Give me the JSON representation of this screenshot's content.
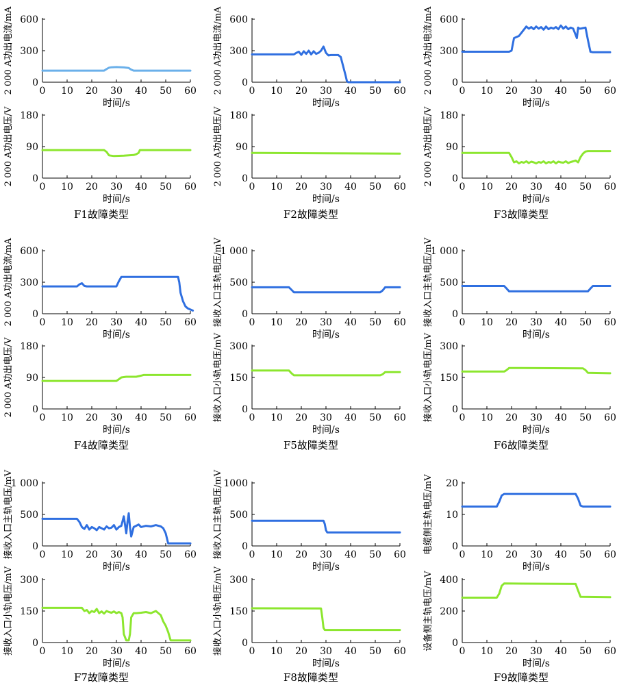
{
  "colors": {
    "current": "#2F6FE0",
    "current_light": "#6BB0EA",
    "voltage": "#8CE62E",
    "axis": "#000000"
  },
  "chart_data": [
    {
      "type": "line",
      "group": "F1",
      "ylabel": "2 000 A功出电流/mA",
      "xlabel": "时间/s",
      "yticks": [
        "0",
        "300",
        "600"
      ],
      "ylim": [
        0,
        600
      ],
      "xlim": [
        0,
        60
      ],
      "color": "current_light",
      "x": [
        0,
        25,
        26,
        27,
        28,
        30,
        33,
        35,
        36,
        37,
        60
      ],
      "y": [
        110,
        110,
        125,
        138,
        142,
        144,
        141,
        135,
        120,
        110,
        110
      ]
    },
    {
      "type": "line",
      "group": "F1",
      "ylabel": "2 000 A功出电压/V",
      "xlabel": "时间/s",
      "yticks": [
        "0",
        "90",
        "180"
      ],
      "ylim": [
        0,
        180
      ],
      "xlim": [
        0,
        60
      ],
      "color": "voltage",
      "x": [
        0,
        25,
        26,
        27,
        29,
        33,
        37,
        38,
        39,
        39.5,
        60
      ],
      "y": [
        80,
        80,
        75,
        65,
        63,
        64,
        66,
        68,
        72,
        80,
        80
      ]
    },
    {
      "type": "line",
      "group": "F2",
      "ylabel": "2 000 A功出电流/mA",
      "xlabel": "时间/s",
      "yticks": [
        "0",
        "300",
        "600"
      ],
      "ylim": [
        0,
        600
      ],
      "xlim": [
        0,
        60
      ],
      "color": "current",
      "x": [
        0,
        17,
        18,
        19,
        20,
        21,
        22,
        23,
        24,
        25,
        26,
        27,
        28,
        29,
        30,
        31,
        32,
        35,
        36,
        37,
        38,
        38.5,
        39,
        40,
        60
      ],
      "y": [
        265,
        265,
        280,
        290,
        260,
        295,
        270,
        300,
        265,
        295,
        270,
        280,
        300,
        340,
        280,
        255,
        258,
        258,
        240,
        150,
        60,
        10,
        0,
        0,
        0
      ]
    },
    {
      "type": "line",
      "group": "F2",
      "ylabel": "2 000 A功出电压/V",
      "xlabel": "时间/s",
      "yticks": [
        "0",
        "90",
        "180"
      ],
      "ylim": [
        0,
        180
      ],
      "xlim": [
        0,
        60
      ],
      "color": "voltage",
      "x": [
        0,
        30,
        60
      ],
      "y": [
        72,
        71,
        70
      ]
    },
    {
      "type": "line",
      "group": "F3",
      "ylabel": "2 000 A功出电流/mA",
      "xlabel": "时间/s",
      "yticks": [
        "0",
        "300",
        "600"
      ],
      "ylim": [
        0,
        600
      ],
      "xlim": [
        0,
        60
      ],
      "color": "current",
      "x": [
        0,
        19,
        20,
        21,
        23,
        24,
        25,
        26,
        27,
        28,
        29,
        30,
        31,
        32,
        33,
        34,
        35,
        36,
        37,
        38,
        39,
        40,
        41,
        42,
        43,
        44,
        45,
        46,
        46.5,
        47,
        47.5,
        48,
        49,
        50,
        51,
        52,
        53,
        60
      ],
      "y": [
        290,
        290,
        300,
        420,
        440,
        470,
        500,
        530,
        510,
        525,
        505,
        530,
        510,
        525,
        500,
        530,
        505,
        520,
        510,
        525,
        505,
        540,
        510,
        530,
        505,
        520,
        510,
        450,
        420,
        520,
        510,
        510,
        515,
        520,
        400,
        290,
        285,
        285
      ]
    },
    {
      "type": "line",
      "group": "F3",
      "ylabel": "2 000 A功出电压/V",
      "xlabel": "时间/s",
      "yticks": [
        "0",
        "90",
        "180"
      ],
      "ylim": [
        0,
        180
      ],
      "xlim": [
        0,
        60
      ],
      "color": "voltage",
      "x": [
        0,
        19,
        20,
        21,
        22,
        23,
        24,
        25,
        26,
        27,
        28,
        29,
        30,
        31,
        32,
        33,
        34,
        35,
        36,
        37,
        38,
        39,
        40,
        41,
        42,
        43,
        44,
        45,
        46,
        47,
        48,
        49,
        50,
        51,
        60
      ],
      "y": [
        72,
        72,
        60,
        45,
        48,
        42,
        46,
        44,
        48,
        43,
        47,
        45,
        42,
        46,
        44,
        48,
        42,
        46,
        44,
        48,
        42,
        47,
        45,
        44,
        48,
        43,
        46,
        48,
        50,
        45,
        60,
        70,
        76,
        77,
        77
      ]
    },
    {
      "type": "line",
      "group": "F4",
      "ylabel": "2 000 A功出电流/mA",
      "xlabel": "时间/s",
      "yticks": [
        "0",
        "300",
        "600"
      ],
      "ylim": [
        0,
        600
      ],
      "xlim": [
        0,
        60
      ],
      "color": "current",
      "x": [
        0,
        14,
        15,
        16,
        17,
        18,
        30,
        31,
        32,
        55,
        55.5,
        56,
        57,
        58,
        59,
        60,
        61
      ],
      "y": [
        260,
        260,
        280,
        290,
        265,
        260,
        260,
        310,
        350,
        350,
        300,
        200,
        120,
        70,
        50,
        40,
        30
      ]
    },
    {
      "type": "line",
      "group": "F4",
      "ylabel": "2 000 A功出电压/V",
      "xlabel": "时间/s",
      "yticks": [
        "0",
        "90",
        "180"
      ],
      "ylim": [
        0,
        180
      ],
      "xlim": [
        0,
        60
      ],
      "color": "voltage",
      "x": [
        0,
        30,
        31,
        32,
        34,
        38,
        40,
        41,
        60
      ],
      "y": [
        80,
        80,
        85,
        90,
        92,
        92,
        95,
        97,
        97
      ]
    },
    {
      "type": "line",
      "group": "F5",
      "ylabel": "接收入口主轨电压/mV",
      "xlabel": "时间/s",
      "yticks": [
        "0",
        "500",
        "1 000"
      ],
      "ylim": [
        0,
        1000
      ],
      "xlim": [
        0,
        60
      ],
      "color": "current",
      "x": [
        0,
        15,
        16,
        17,
        52,
        53,
        54,
        60
      ],
      "y": [
        420,
        420,
        380,
        340,
        340,
        370,
        420,
        420
      ]
    },
    {
      "type": "line",
      "group": "F5",
      "ylabel": "接收入口小轨电压/mV",
      "xlabel": "时间/s",
      "yticks": [
        "0",
        "150",
        "300"
      ],
      "ylim": [
        0,
        300
      ],
      "xlim": [
        0,
        60
      ],
      "color": "voltage",
      "x": [
        0,
        15,
        16,
        17,
        52,
        53,
        54,
        60
      ],
      "y": [
        183,
        183,
        170,
        160,
        160,
        165,
        175,
        175
      ]
    },
    {
      "type": "line",
      "group": "F6",
      "ylabel": "接收入口主轨电压/mV",
      "xlabel": "时间/s",
      "yticks": [
        "0",
        "500",
        "1 000"
      ],
      "ylim": [
        0,
        1000
      ],
      "xlim": [
        0,
        60
      ],
      "color": "current",
      "x": [
        0,
        17,
        18,
        19,
        51,
        52,
        53,
        60
      ],
      "y": [
        440,
        440,
        400,
        355,
        355,
        400,
        440,
        440
      ]
    },
    {
      "type": "line",
      "group": "F6",
      "ylabel": "接收入口小轨电压/mV",
      "xlabel": "时间/s",
      "yticks": [
        "0",
        "150",
        "300"
      ],
      "ylim": [
        0,
        300
      ],
      "xlim": [
        0,
        60
      ],
      "color": "voltage",
      "x": [
        0,
        17,
        18,
        19,
        49,
        50,
        51,
        60
      ],
      "y": [
        178,
        178,
        185,
        195,
        193,
        185,
        172,
        170
      ]
    },
    {
      "type": "line",
      "group": "F7",
      "ylabel": "接收入口主轨电压/mV",
      "xlabel": "时间/s",
      "yticks": [
        "0",
        "500",
        "1 000"
      ],
      "ylim": [
        0,
        1000
      ],
      "xlim": [
        0,
        60
      ],
      "color": "current",
      "x": [
        0,
        14,
        15,
        16,
        17,
        18,
        19,
        20,
        21,
        22,
        23,
        24,
        25,
        26,
        27,
        28,
        29,
        30,
        31,
        32,
        33,
        34,
        34.5,
        35,
        35.5,
        36,
        37,
        38,
        39,
        40,
        42,
        44,
        46,
        48,
        49,
        50,
        50.5,
        51,
        60
      ],
      "y": [
        430,
        430,
        380,
        300,
        270,
        330,
        260,
        300,
        280,
        250,
        300,
        280,
        260,
        310,
        280,
        290,
        330,
        260,
        300,
        320,
        470,
        200,
        380,
        520,
        300,
        150,
        300,
        320,
        340,
        300,
        320,
        310,
        330,
        310,
        280,
        200,
        120,
        40,
        40
      ]
    },
    {
      "type": "line",
      "group": "F7",
      "ylabel": "接收入口小轨电压/mV",
      "xlabel": "时间/s",
      "yticks": [
        "0",
        "150",
        "300"
      ],
      "ylim": [
        0,
        300
      ],
      "xlim": [
        0,
        60
      ],
      "color": "voltage",
      "x": [
        0,
        16,
        17,
        18,
        19,
        20,
        21,
        22,
        23,
        24,
        25,
        26,
        27,
        28,
        29,
        30,
        31,
        32,
        32.5,
        33,
        34,
        35,
        35.5,
        36,
        37,
        38,
        40,
        42,
        44,
        46,
        48,
        49,
        50,
        51,
        52,
        60
      ],
      "y": [
        165,
        165,
        150,
        155,
        140,
        150,
        145,
        160,
        140,
        148,
        138,
        150,
        145,
        142,
        148,
        140,
        145,
        140,
        120,
        40,
        10,
        10,
        40,
        120,
        140,
        140,
        142,
        145,
        140,
        150,
        130,
        100,
        80,
        50,
        10,
        10
      ]
    },
    {
      "type": "line",
      "group": "F8",
      "ylabel": "接收入口主轨电压/mV",
      "xlabel": "时间/s",
      "yticks": [
        "0",
        "500",
        "1000"
      ],
      "ylim": [
        0,
        1000
      ],
      "xlim": [
        0,
        60
      ],
      "color": "current",
      "x": [
        0,
        29,
        29.5,
        30,
        30.5,
        60
      ],
      "y": [
        400,
        400,
        350,
        250,
        215,
        215
      ]
    },
    {
      "type": "line",
      "group": "F8",
      "ylabel": "接收入口小轨电压/mV",
      "xlabel": "时间/s",
      "yticks": [
        "0",
        "150",
        "300"
      ],
      "ylim": [
        0,
        300
      ],
      "xlim": [
        0,
        60
      ],
      "color": "voltage",
      "x": [
        0,
        28,
        28.5,
        29,
        29.5,
        60
      ],
      "y": [
        163,
        162,
        120,
        70,
        60,
        60
      ]
    },
    {
      "type": "line",
      "group": "F9",
      "ylabel": "电缆侧主轨电压/mV",
      "xlabel": "时间/s",
      "yticks": [
        "0",
        "10",
        "20"
      ],
      "ylim": [
        0,
        20
      ],
      "xlim": [
        0,
        60
      ],
      "color": "current",
      "x": [
        0,
        14,
        15,
        16,
        17,
        46,
        47,
        48,
        49,
        60
      ],
      "y": [
        12.5,
        12.5,
        14,
        16,
        16.5,
        16.5,
        15,
        12.8,
        12.5,
        12.5
      ]
    },
    {
      "type": "line",
      "group": "F9",
      "ylabel": "设备侧主轨电压/mV",
      "xlabel": "时间/s",
      "yticks": [
        "0",
        "200",
        "400"
      ],
      "ylim": [
        0,
        400
      ],
      "xlim": [
        0,
        60
      ],
      "color": "voltage",
      "x": [
        0,
        14,
        15,
        16,
        17,
        46,
        47,
        48,
        60
      ],
      "y": [
        285,
        285,
        310,
        360,
        375,
        372,
        330,
        290,
        288
      ]
    }
  ],
  "captions": [
    "F1故障类型",
    "F2故障类型",
    "F3故障类型",
    "F4故障类型",
    "F5故障类型",
    "F6故障类型",
    "F7故障类型",
    "F8故障类型",
    "F9故障类型"
  ],
  "xticks": [
    "0",
    "10",
    "20",
    "30",
    "40",
    "50",
    "60"
  ]
}
